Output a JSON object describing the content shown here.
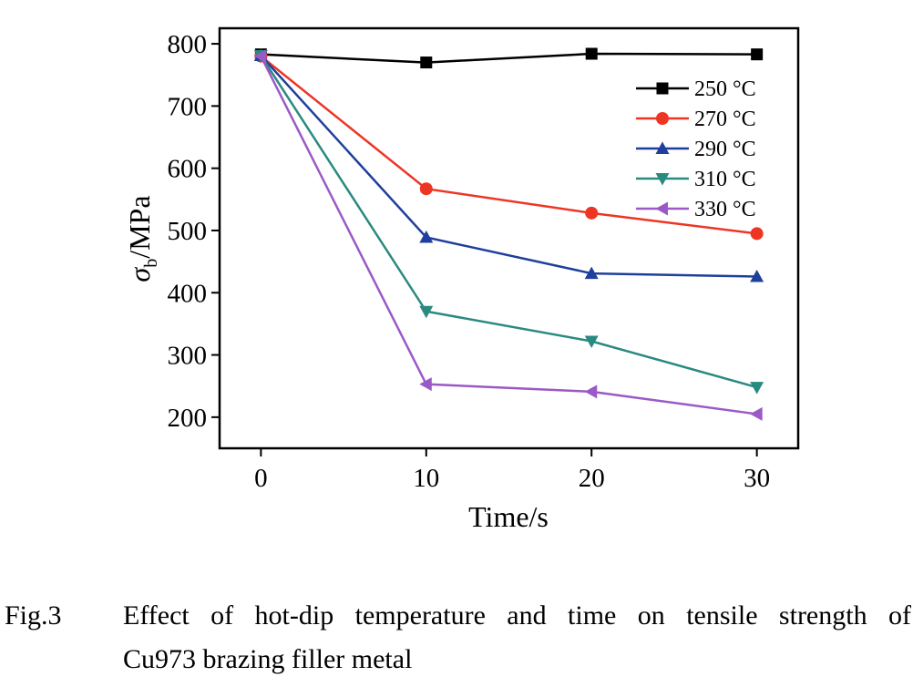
{
  "chart_data": {
    "type": "line",
    "xlabel": "Time/s",
    "ylabel_main": "σ",
    "ylabel_sub": "b",
    "ylabel_unit": "/MPa",
    "xlim": [
      -2.5,
      32.5
    ],
    "ylim": [
      150,
      825
    ],
    "x_ticks": [
      0,
      10,
      20,
      30
    ],
    "y_ticks": [
      200,
      300,
      400,
      500,
      600,
      700,
      800
    ],
    "grid": false,
    "legend_position": "top-right",
    "x": [
      0,
      10,
      20,
      30
    ],
    "series": [
      {
        "name": "250 °C",
        "values": [
          783,
          770,
          784,
          783
        ],
        "color": "#000000",
        "marker": "square"
      },
      {
        "name": "270 °C",
        "values": [
          780,
          567,
          528,
          495
        ],
        "color": "#ee3524",
        "marker": "circle"
      },
      {
        "name": "290 °C",
        "values": [
          781,
          489,
          431,
          426
        ],
        "color": "#1f3f9c",
        "marker": "triangle-up"
      },
      {
        "name": "310 °C",
        "values": [
          781,
          370,
          322,
          248
        ],
        "color": "#2a8a80",
        "marker": "triangle-down"
      },
      {
        "name": "330 °C",
        "values": [
          780,
          253,
          241,
          205
        ],
        "color": "#9b59c6",
        "marker": "triangle-left"
      }
    ]
  },
  "caption": {
    "number": "Fig.3",
    "line1": "Effect of hot-dip temperature and time on tensile strength of",
    "line2": "Cu973 brazing filler metal"
  }
}
